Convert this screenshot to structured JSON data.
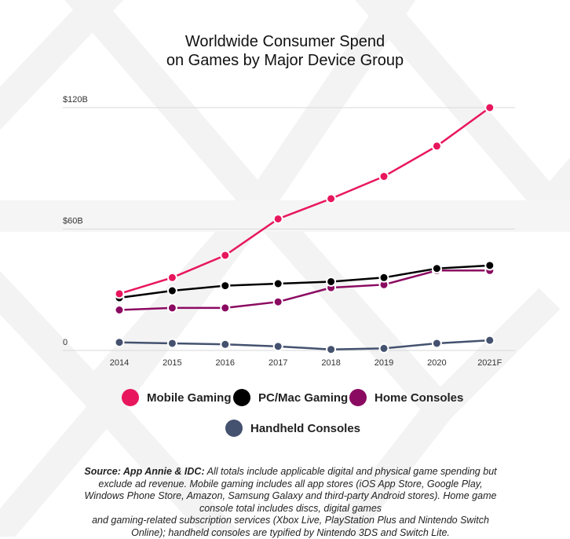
{
  "chart_data": {
    "type": "line",
    "title": "Worldwide Consumer Spend",
    "subtitle": "on Games by Major Device Group",
    "categories": [
      "2014",
      "2015",
      "2016",
      "2017",
      "2018",
      "2019",
      "2020",
      "2021F"
    ],
    "y_ticks": [
      "0",
      "$60B",
      "$120B"
    ],
    "ylim": [
      0,
      120
    ],
    "grid": true,
    "legend_position": "bottom",
    "series": [
      {
        "name": "Mobile Gaming",
        "color": "#e8175d",
        "values": [
          28,
          36,
          47,
          65,
          75,
          86,
          101,
          120
        ]
      },
      {
        "name": "PC/Mac Gaming",
        "color": "#000000",
        "values": [
          26,
          29.5,
          32,
          33,
          34,
          36,
          40.5,
          42
        ]
      },
      {
        "name": "Home Consoles",
        "color": "#8b0a61",
        "values": [
          20,
          21,
          21,
          24,
          31,
          32.5,
          39.5,
          39.5
        ]
      },
      {
        "name": "Handheld Consoles",
        "color": "#44526f",
        "values": [
          4,
          3.5,
          3,
          2,
          0.5,
          1,
          3.5,
          5
        ]
      }
    ]
  },
  "source": {
    "label": "Source: App Annie & IDC:",
    "line1": "All totals include applicable digital and physical game spending but",
    "line2": "exclude ad revenue. Mobile gaming includes all app stores (iOS App Store, Google Play,",
    "line3": "Windows Phone Store, Amazon, Samsung Galaxy and third-party Android stores). Home game",
    "line4": "console total includes discs, digital games",
    "line5": "and gaming-related subscription services (Xbox Live, PlayStation Plus and Nintendo Switch",
    "line6": "Online); handheld consoles are typified by Nintendo 3DS and Switch Lite."
  }
}
